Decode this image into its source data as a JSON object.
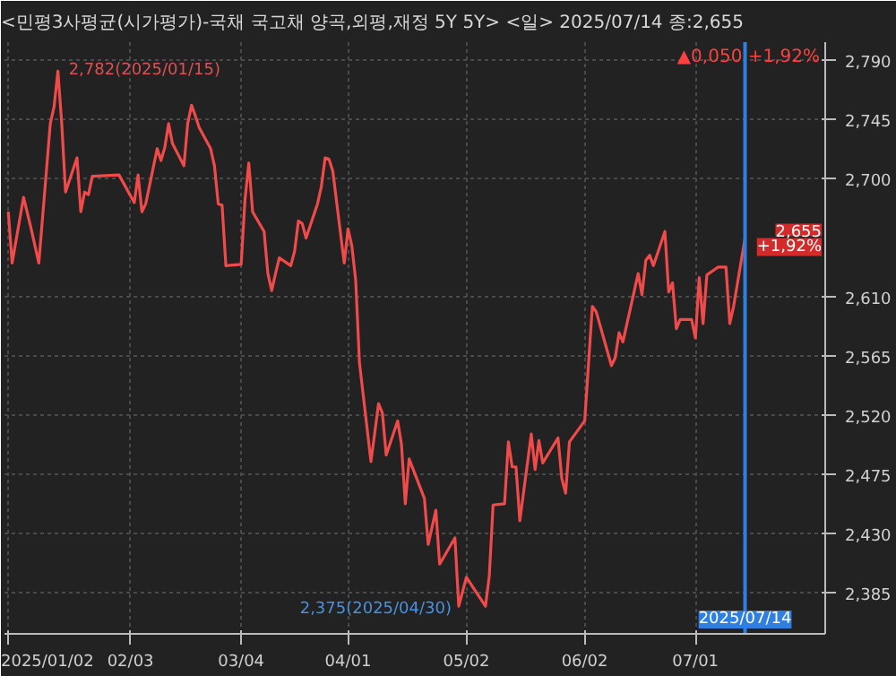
{
  "chart_data": {
    "type": "line",
    "title": "<민평3사평균(시가평가)-국채 국고채 양곡,외평,재정 5Y 5Y> <일> 2025/07/14 종:2,655",
    "x": [
      "2025-01-02",
      "2025-01-03",
      "2025-01-06",
      "2025-01-08",
      "2025-01-10",
      "2025-01-13",
      "2025-01-14",
      "2025-01-15",
      "2025-01-16",
      "2025-01-17",
      "2025-01-20",
      "2025-01-21",
      "2025-01-22",
      "2025-01-23",
      "2025-01-24",
      "2025-01-31",
      "2025-02-04",
      "2025-02-05",
      "2025-02-06",
      "2025-02-07",
      "2025-02-10",
      "2025-02-11",
      "2025-02-12",
      "2025-02-13",
      "2025-02-14",
      "2025-02-17",
      "2025-02-18",
      "2025-02-19",
      "2025-02-20",
      "2025-02-21",
      "2025-02-24",
      "2025-02-25",
      "2025-02-26",
      "2025-02-27",
      "2025-02-28",
      "2025-03-04",
      "2025-03-05",
      "2025-03-06",
      "2025-03-07",
      "2025-03-10",
      "2025-03-11",
      "2025-03-12",
      "2025-03-13",
      "2025-03-14",
      "2025-03-17",
      "2025-03-18",
      "2025-03-19",
      "2025-03-20",
      "2025-03-21",
      "2025-03-24",
      "2025-03-25",
      "2025-03-26",
      "2025-03-27",
      "2025-03-28",
      "2025-03-31",
      "2025-04-01",
      "2025-04-02",
      "2025-04-03",
      "2025-04-04",
      "2025-04-07",
      "2025-04-09",
      "2025-04-10",
      "2025-04-11",
      "2025-04-14",
      "2025-04-15",
      "2025-04-16",
      "2025-04-17",
      "2025-04-21",
      "2025-04-22",
      "2025-04-23",
      "2025-04-24",
      "2025-04-25",
      "2025-04-29",
      "2025-04-30",
      "2025-05-02",
      "2025-05-07",
      "2025-05-08",
      "2025-05-09",
      "2025-05-12",
      "2025-05-13",
      "2025-05-14",
      "2025-05-15",
      "2025-05-16",
      "2025-05-19",
      "2025-05-20",
      "2025-05-21",
      "2025-05-22",
      "2025-05-26",
      "2025-05-27",
      "2025-05-28",
      "2025-05-29",
      "2025-06-02",
      "2025-06-04",
      "2025-06-05",
      "2025-06-09",
      "2025-06-10",
      "2025-06-11",
      "2025-06-12",
      "2025-06-16",
      "2025-06-17",
      "2025-06-18",
      "2025-06-19",
      "2025-06-20",
      "2025-06-23",
      "2025-06-24",
      "2025-06-25",
      "2025-06-26",
      "2025-06-27",
      "2025-06-30",
      "2025-07-01",
      "2025-07-02",
      "2025-07-03",
      "2025-07-04",
      "2025-07-07",
      "2025-07-09",
      "2025-07-10",
      "2025-07-11",
      "2025-07-14"
    ],
    "series": [
      {
        "color": "#f04a4a",
        "values": [
          2675,
          2636,
          2686,
          2662,
          2636,
          2742,
          2755,
          2782,
          2742,
          2690,
          2716,
          2675,
          2690,
          2688,
          2702,
          2703,
          2682,
          2703,
          2675,
          2681,
          2723,
          2714,
          2724,
          2742,
          2727,
          2710,
          2742,
          2756,
          2748,
          2739,
          2723,
          2710,
          2681,
          2680,
          2634,
          2635,
          2684,
          2712,
          2675,
          2660,
          2628,
          2615,
          2628,
          2640,
          2634,
          2645,
          2668,
          2666,
          2655,
          2681,
          2694,
          2716,
          2715,
          2706,
          2636,
          2662,
          2649,
          2623,
          2560,
          2485,
          2529,
          2522,
          2490,
          2516,
          2498,
          2453,
          2487,
          2457,
          2422,
          2435,
          2448,
          2407,
          2427,
          2375,
          2397,
          2375,
          2398,
          2452,
          2453,
          2500,
          2481,
          2481,
          2440,
          2506,
          2479,
          2501,
          2484,
          2503,
          2472,
          2461,
          2500,
          2516,
          2603,
          2599,
          2558,
          2564,
          2583,
          2576,
          2628,
          2612,
          2638,
          2642,
          2634,
          2660,
          2614,
          2621,
          2586,
          2593,
          2593,
          2579,
          2625,
          2590,
          2627,
          2633,
          2633,
          2590,
          2603,
          2655
        ]
      }
    ],
    "xlim": [
      "2025-01-01",
      "2025-08-04"
    ],
    "xticks": [
      {
        "value": "2025-01-02",
        "label": "2025/01/02"
      },
      {
        "value": "2025-02-03",
        "label": "02/03"
      },
      {
        "value": "2025-03-04",
        "label": "03/04"
      },
      {
        "value": "2025-04-01",
        "label": "04/01"
      },
      {
        "value": "2025-05-02",
        "label": "05/02"
      },
      {
        "value": "2025-06-02",
        "label": "06/02"
      },
      {
        "value": "2025-07-01",
        "label": "07/01"
      }
    ],
    "ylim": [
      2354,
      2804
    ],
    "yticks": [
      {
        "value": 2385,
        "label": "2,385"
      },
      {
        "value": 2430,
        "label": "2,430"
      },
      {
        "value": 2475,
        "label": "2,475"
      },
      {
        "value": 2520,
        "label": "2,520"
      },
      {
        "value": 2565,
        "label": "2,565"
      },
      {
        "value": 2610,
        "label": "2,610"
      },
      {
        "value": 2700,
        "label": "2,700"
      },
      {
        "value": 2745,
        "label": "2,745"
      },
      {
        "value": 2790,
        "label": "2,790"
      }
    ],
    "grid": true,
    "ref_lines": [
      {
        "axis": "x",
        "value": "2025-07-14",
        "label": "2025/07/14",
        "color": "#2f7fe0"
      }
    ],
    "annotations": [
      "▲0,050 +1,92%",
      {
        "text": "2,782(2025/01/15)",
        "x": "2025-01-15",
        "y": 2782
      },
      {
        "text": "2,375(2025/04/30)",
        "x": "2025-04-30",
        "y": 2375
      },
      {
        "text": "2,655",
        "x": "2025-07-14",
        "y": 2655
      },
      {
        "text": "+1,92%",
        "x": "2025-07-14",
        "y": 2655
      }
    ]
  }
}
